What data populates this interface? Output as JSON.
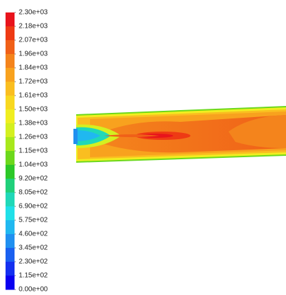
{
  "chart_data": {
    "type": "contour",
    "colorbar": {
      "ticks": [
        {
          "value": 2300,
          "label": "2.30e+03"
        },
        {
          "value": 2185,
          "label": "2.18e+03"
        },
        {
          "value": 2070,
          "label": "2.07e+03"
        },
        {
          "value": 1955,
          "label": "1.96e+03"
        },
        {
          "value": 1840,
          "label": "1.84e+03"
        },
        {
          "value": 1725,
          "label": "1.72e+03"
        },
        {
          "value": 1610,
          "label": "1.61e+03"
        },
        {
          "value": 1495,
          "label": "1.50e+03"
        },
        {
          "value": 1380,
          "label": "1.38e+03"
        },
        {
          "value": 1265,
          "label": "1.26e+03"
        },
        {
          "value": 1150,
          "label": "1.15e+03"
        },
        {
          "value": 1035,
          "label": "1.04e+03"
        },
        {
          "value": 920,
          "label": "9.20e+02"
        },
        {
          "value": 805,
          "label": "8.05e+02"
        },
        {
          "value": 690,
          "label": "6.90e+02"
        },
        {
          "value": 575,
          "label": "5.75e+02"
        },
        {
          "value": 460,
          "label": "4.60e+02"
        },
        {
          "value": 345,
          "label": "3.45e+02"
        },
        {
          "value": 230,
          "label": "2.30e+02"
        },
        {
          "value": 115,
          "label": "1.15e+02"
        },
        {
          "value": 0,
          "label": "0.00e+00"
        }
      ],
      "lim": [
        0,
        2300
      ],
      "colors": [
        "#e8141c",
        "#ee3a14",
        "#f06018",
        "#f4841c",
        "#f8a21e",
        "#fabe20",
        "#f8d820",
        "#f0ee20",
        "#d4f020",
        "#a8e81c",
        "#6cd81c",
        "#2cc828",
        "#20d07a",
        "#20d8b8",
        "#20e0e8",
        "#20b8f0",
        "#2090f0",
        "#1a60f0",
        "#1430f0",
        "#0a00f0"
      ]
    }
  }
}
